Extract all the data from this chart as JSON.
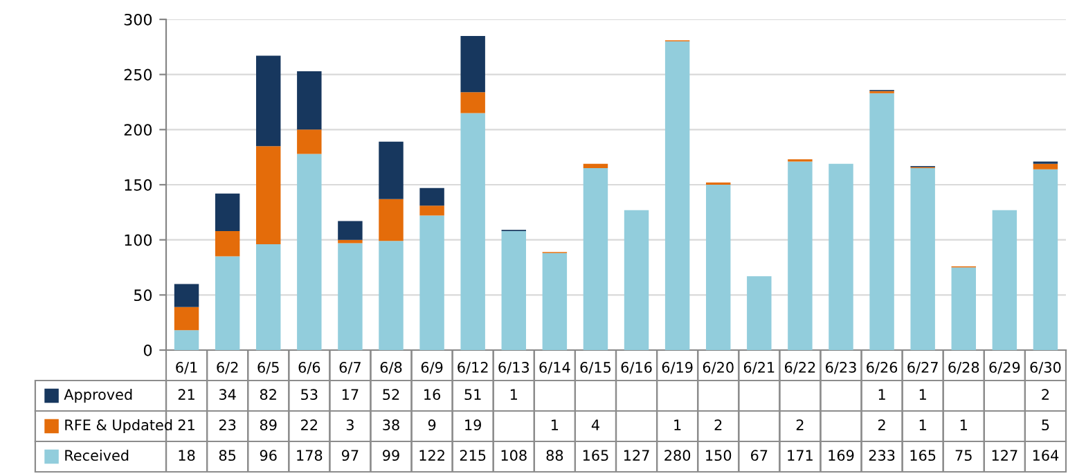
{
  "chart_data": {
    "type": "bar",
    "stacked": true,
    "categories": [
      "6/1",
      "6/2",
      "6/5",
      "6/6",
      "6/7",
      "6/8",
      "6/9",
      "6/12",
      "6/13",
      "6/14",
      "6/15",
      "6/16",
      "6/19",
      "6/20",
      "6/21",
      "6/22",
      "6/23",
      "6/26",
      "6/27",
      "6/28",
      "6/29",
      "6/30"
    ],
    "series": [
      {
        "name": "Received",
        "color": "#92cddc",
        "values": [
          18,
          85,
          96,
          178,
          97,
          99,
          122,
          215,
          108,
          88,
          165,
          127,
          280,
          150,
          67,
          171,
          169,
          233,
          165,
          75,
          127,
          164
        ],
        "value_labels": [
          "18",
          "85",
          "96",
          "178",
          "97",
          "99",
          "122",
          "215",
          "108",
          "88",
          "165",
          "127",
          "280",
          "150",
          "67",
          "171",
          "169",
          "233",
          "165",
          "75",
          "127",
          "164"
        ]
      },
      {
        "name": "RFE & Updated",
        "color": "#e46c0a",
        "values": [
          21,
          23,
          89,
          22,
          3,
          38,
          9,
          19,
          null,
          1,
          4,
          null,
          1,
          2,
          null,
          2,
          null,
          2,
          1,
          1,
          null,
          5
        ],
        "value_labels": [
          "21",
          "23",
          "89",
          "22",
          "3",
          "38",
          "9",
          "19",
          null,
          "1",
          "4",
          null,
          "1",
          "2",
          null,
          "2",
          null,
          "2",
          "1",
          "1",
          null,
          "5"
        ]
      },
      {
        "name": "Approved",
        "color": "#17375e",
        "values": [
          21,
          34,
          82,
          53,
          17,
          52,
          16,
          51,
          1,
          null,
          null,
          null,
          null,
          null,
          null,
          null,
          null,
          1,
          1,
          null,
          null,
          2
        ],
        "value_labels": [
          "21",
          "34",
          "82",
          "53",
          "17",
          "52",
          "16",
          "51",
          "1",
          null,
          null,
          null,
          null,
          null,
          null,
          null,
          null,
          "1",
          "1",
          null,
          null,
          "2"
        ]
      }
    ],
    "ylim": [
      0,
      300
    ],
    "yticks": [
      0,
      50,
      100,
      150,
      200,
      250,
      300
    ],
    "grid": "y",
    "legend": "bottom"
  }
}
